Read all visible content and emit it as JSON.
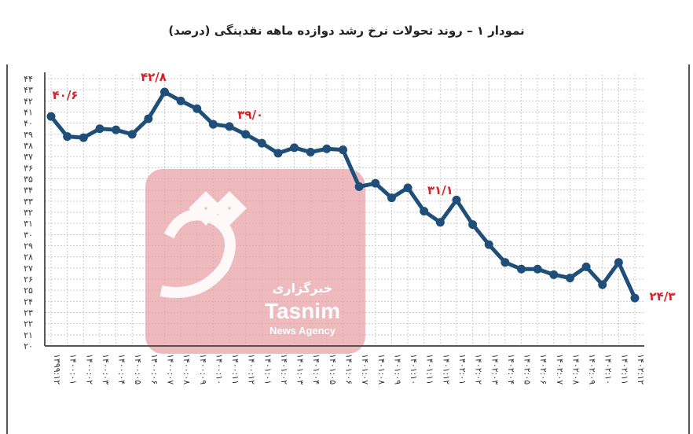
{
  "chart_data": {
    "type": "line",
    "title": "نمودار ۱ – روند تحولات نرخ رشد دوازده ماهه نقدینگی (درصد)",
    "xlabel": "",
    "ylabel": "",
    "ylim": [
      20,
      44
    ],
    "grid": true,
    "y_ticks": [
      "۲۰",
      "۲۱",
      "۲۲",
      "۲۳",
      "۲۴",
      "۲۵",
      "۲۶",
      "۲۷",
      "۲۸",
      "۲۹",
      "۳۰",
      "۳۱",
      "۳۲",
      "۳۳",
      "۳۴",
      "۳۵",
      "۳۶",
      "۳۷",
      "۳۸",
      "۳۹",
      "۴۰",
      "۴۱",
      "۴۲",
      "۴۳",
      "۴۴"
    ],
    "categories": [
      "۱۳۹۹:۱۲",
      "۱۴۰۰:۰۱",
      "۱۴۰۰:۰۲",
      "۱۴۰۰:۰۳",
      "۱۴۰۰:۰۴",
      "۱۴۰۰:۰۵",
      "۱۴۰۰:۰۶",
      "۱۴۰۰:۰۷",
      "۱۴۰۰:۰۸",
      "۱۴۰۰:۰۹",
      "۱۴۰۰:۱۰",
      "۱۴۰۰:۱۱",
      "۱۴۰۰:۱۲",
      "۱۴۰۱:۰۱",
      "۱۴۰۱:۰۲",
      "۱۴۰۱:۰۳",
      "۱۴۰۱:۰۴",
      "۱۴۰۱:۰۵",
      "۱۴۰۱:۰۶",
      "۱۴۰۱:۰۷",
      "۱۴۰۱:۰۸",
      "۱۴۰۱:۰۹",
      "۱۴۰۱:۱۰",
      "۱۴۰۱:۱۱",
      "۱۴۰۱:۱۲",
      "۱۴۰۲:۰۱",
      "۱۴۰۲:۰۲",
      "۱۴۰۲:۰۳",
      "۱۴۰۲:۰۴",
      "۱۴۰۲:۰۵",
      "۱۴۰۲:۰۶",
      "۱۴۰۲:۰۷",
      "۱۴۰۲:۰۸",
      "۱۴۰۲:۰۹",
      "۱۴۰۲:۱۰",
      "۱۴۰۲:۱۱",
      "۱۴۰۲:۱۲"
    ],
    "values": [
      40.6,
      38.8,
      38.7,
      39.5,
      39.4,
      39.0,
      40.4,
      42.8,
      42.0,
      41.3,
      39.9,
      39.7,
      39.0,
      38.2,
      37.3,
      37.8,
      37.4,
      37.7,
      37.6,
      34.3,
      34.6,
      33.3,
      34.2,
      32.1,
      31.1,
      33.1,
      30.9,
      29.1,
      27.5,
      26.9,
      26.9,
      26.4,
      26.1,
      27.1,
      25.5,
      27.5,
      24.3
    ],
    "line_color": "#1f4e79",
    "label_color": "#d2232a",
    "annotations": [
      {
        "index": 0,
        "text": "۴۰/۶"
      },
      {
        "index": 7,
        "text": "۴۲/۸"
      },
      {
        "index": 12,
        "text": "۳۹/۰"
      },
      {
        "index": 24,
        "text": "۳۱/۱"
      },
      {
        "index": 36,
        "text": "۲۴/۳"
      }
    ]
  },
  "watermark": {
    "line1": "خبرگزاری",
    "line2": "Tasnim",
    "line3": "News Agency",
    "color": "#e8a3a8"
  }
}
